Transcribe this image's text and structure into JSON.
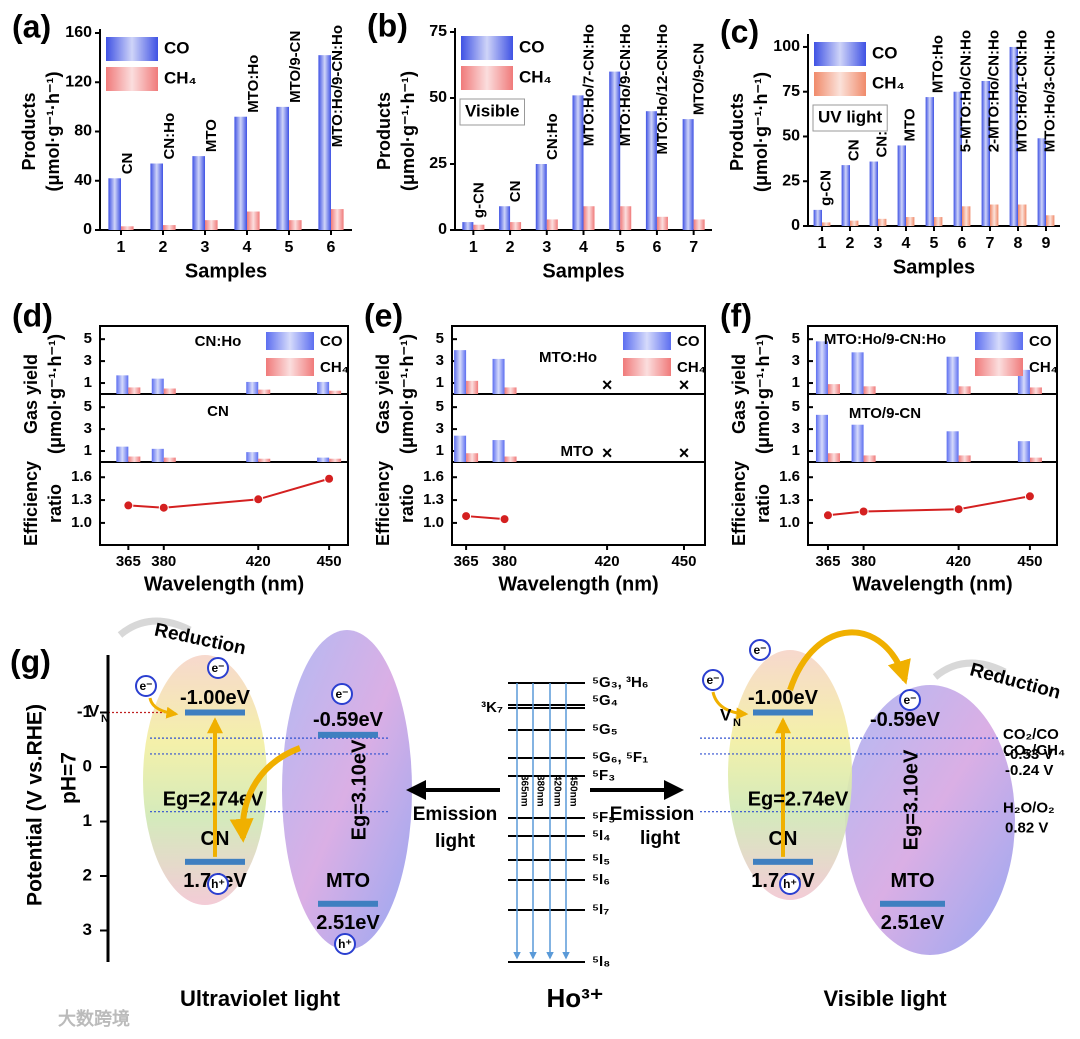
{
  "chart_data": [
    {
      "type": "bar",
      "panel": "(a)",
      "categories": [
        1,
        2,
        3,
        4,
        5,
        6
      ],
      "sample_labels": [
        "CN",
        "CN:Ho",
        "MTO",
        "MTO:Ho",
        "MTO/9-CN",
        "MTO:Ho/9-CN:Ho"
      ],
      "series": [
        {
          "name": "CO",
          "color": "#3f52e4",
          "values": [
            42,
            54,
            60,
            92,
            100,
            142
          ]
        },
        {
          "name": "CH₄",
          "color": "#f07a7a",
          "values": [
            3,
            4,
            8,
            15,
            8,
            17
          ]
        }
      ],
      "ylim": [
        0,
        160
      ],
      "yticks": [
        0,
        40,
        80,
        120,
        160
      ],
      "xlabel": "Samples",
      "ylabel": [
        "Products",
        "(μmol·g⁻¹·h⁻¹)"
      ]
    },
    {
      "type": "bar",
      "panel": "(b)",
      "categories": [
        1,
        2,
        3,
        4,
        5,
        6,
        7
      ],
      "sample_labels": [
        "g-CN",
        "CN",
        "CN:Ho",
        "MTO:Ho/7-CN:Ho",
        "MTO:Ho/9-CN:Ho",
        "MTO:Ho/12-CN:Ho",
        "MTO/9-CN"
      ],
      "series": [
        {
          "name": "CO",
          "color": "#3f52e4",
          "values": [
            3,
            9,
            25,
            51,
            60,
            45,
            42
          ]
        },
        {
          "name": "CH₄",
          "color": "#f07a7a",
          "values": [
            2,
            3,
            4,
            9,
            9,
            5,
            4
          ]
        }
      ],
      "annotation": "Visible",
      "ylim": [
        0,
        75
      ],
      "yticks": [
        0,
        25,
        50,
        75
      ],
      "xlabel": "Samples",
      "ylabel": [
        "Products",
        "(μmol·g⁻¹·h⁻¹)"
      ]
    },
    {
      "type": "bar",
      "panel": "(c)",
      "categories": [
        1,
        2,
        3,
        4,
        5,
        6,
        7,
        8,
        9
      ],
      "sample_labels": [
        "g-CN",
        "CN",
        "CN:Ho",
        "MTO",
        "MTO:Ho",
        "5-MTO:Ho/CN:Ho",
        "2-MTO:Ho/CN:Ho",
        "MTO:Ho/1-CN:Ho",
        "MTO:Ho/3-CN:Ho"
      ],
      "series": [
        {
          "name": "CO",
          "color": "#3f52e4",
          "values": [
            9,
            34,
            36,
            45,
            72,
            75,
            81,
            100,
            49
          ]
        },
        {
          "name": "CH₄",
          "color": "#f08a6a",
          "values": [
            2,
            3,
            4,
            5,
            5,
            11,
            12,
            12,
            6
          ]
        }
      ],
      "annotation": "UV light",
      "ylim": [
        0,
        105
      ],
      "yticks": [
        0,
        25,
        50,
        75,
        100
      ],
      "xlabel": "Samples",
      "ylabel": [
        "Products",
        "(μmol·g⁻¹·h⁻¹)"
      ]
    },
    {
      "type": "combo",
      "panel": "(d)",
      "x": [
        365,
        380,
        420,
        450
      ],
      "xlim": [
        353,
        458
      ],
      "xticks": [
        365,
        380,
        420,
        450
      ],
      "xlabel": "Wavelength (nm)",
      "ylabel_top": [
        "Gas yield",
        "(μmol·g⁻¹·h⁻¹)"
      ],
      "ylabel_bottom": [
        "Efficiency",
        "ratio"
      ],
      "subplots": [
        {
          "label": "CN:Ho",
          "ylim": [
            0,
            6.2
          ],
          "yticks": [
            1,
            3,
            5
          ],
          "series": [
            {
              "name": "CO",
              "color": "#5c6ef0",
              "values": [
                1.7,
                1.4,
                1.1,
                1.1
              ]
            },
            {
              "name": "CH₄",
              "color": "#f07a7a",
              "values": [
                0.6,
                0.5,
                0.4,
                0.3
              ]
            }
          ]
        },
        {
          "label": "CN",
          "ylim": [
            0,
            6.2
          ],
          "yticks": [
            1,
            3,
            5
          ],
          "series": [
            {
              "color": "#5c6ef0",
              "values": [
                1.4,
                1.2,
                0.9,
                0.4
              ]
            },
            {
              "color": "#f07a7a",
              "values": [
                0.5,
                0.4,
                0.3,
                0.3
              ]
            }
          ]
        }
      ],
      "ratio": {
        "color": "#d42020",
        "values": [
          1.23,
          1.2,
          1.31,
          1.58
        ],
        "ylim": [
          0.71,
          1.8
        ],
        "yticks": [
          {
            "value": 1,
            "label": "1.0"
          },
          1.3,
          1.6
        ]
      }
    },
    {
      "type": "combo",
      "panel": "(e)",
      "x": [
        365,
        380,
        420,
        450
      ],
      "xlim": [
        359.5,
        458.2
      ],
      "xticks": [
        365,
        380,
        420,
        450
      ],
      "xlabel": "Wavelength (nm)",
      "ylabel_top": [
        "Gas yield",
        "(μmol·g⁻¹·h⁻¹)"
      ],
      "ylabel_bottom": [
        "Efficiency",
        "ratio"
      ],
      "missing_marker": "×",
      "subplots": [
        {
          "label": "MTO:Ho",
          "ylim": [
            0,
            6.2
          ],
          "yticks": [
            1,
            3,
            5
          ],
          "series": [
            {
              "name": "CO",
              "color": "#5c6ef0",
              "values": [
                4.0,
                3.2,
                null,
                null
              ]
            },
            {
              "name": "CH₄",
              "color": "#f07a7a",
              "values": [
                1.2,
                0.6,
                null,
                null
              ]
            }
          ]
        },
        {
          "label": "MTO",
          "ylim": [
            0,
            6.2
          ],
          "yticks": [
            1,
            3,
            5
          ],
          "series": [
            {
              "color": "#5c6ef0",
              "values": [
                2.4,
                2.0,
                null,
                null
              ]
            },
            {
              "color": "#f07a7a",
              "values": [
                0.8,
                0.5,
                null,
                null
              ]
            }
          ]
        }
      ],
      "ratio": {
        "color": "#d42020",
        "values": [
          1.09,
          1.05,
          null,
          null
        ],
        "ylim": [
          0.71,
          1.8
        ],
        "yticks": [
          {
            "value": 1,
            "label": "1.0"
          },
          1.3,
          1.6
        ]
      }
    },
    {
      "type": "combo",
      "panel": "(f)",
      "x": [
        365,
        380,
        420,
        450
      ],
      "xlim": [
        356.6,
        461.4
      ],
      "xticks": [
        365,
        380,
        420,
        450
      ],
      "xlabel": "Wavelength (nm)",
      "ylabel_top": [
        "Gas yield",
        "(μmol·g⁻¹·h⁻¹)"
      ],
      "ylabel_bottom": [
        "Efficiency",
        "ratio"
      ],
      "subplots": [
        {
          "label": "MTO:Ho/9-CN:Ho",
          "ylim": [
            0,
            6.2
          ],
          "yticks": [
            1,
            3,
            5
          ],
          "series": [
            {
              "name": "CO",
              "color": "#5c6ef0",
              "values": [
                4.8,
                3.8,
                3.4,
                2.2
              ]
            },
            {
              "name": "CH₄",
              "color": "#f07a7a",
              "values": [
                0.9,
                0.7,
                0.7,
                0.6
              ]
            }
          ]
        },
        {
          "label": "MTO/9-CN",
          "ylim": [
            0,
            6.2
          ],
          "yticks": [
            1,
            3,
            5
          ],
          "series": [
            {
              "color": "#5c6ef0",
              "values": [
                4.3,
                3.4,
                2.8,
                1.9
              ]
            },
            {
              "color": "#f07a7a",
              "values": [
                0.8,
                0.6,
                0.6,
                0.4
              ]
            }
          ]
        }
      ],
      "ratio": {
        "color": "#d42020",
        "values": [
          1.1,
          1.15,
          1.18,
          1.35
        ],
        "ylim": [
          0.71,
          1.8
        ],
        "yticks": [
          {
            "value": 1,
            "label": "1.0"
          },
          1.3,
          1.6
        ]
      }
    }
  ],
  "diagram": {
    "panel": "(g)",
    "axis_label": "Potential (V vs.RHE)",
    "ph": "pH=7",
    "potential_ticks": [
      -1,
      0,
      1,
      2,
      3
    ],
    "redox": [
      {
        "couple": "CO₂/CO",
        "potential": {
          "value": -0.53,
          "label": "-0.53 V"
        }
      },
      {
        "couple": "CO₂/CH₄",
        "potential": {
          "value": -0.24,
          "label": "-0.24 V"
        }
      },
      {
        "couple": "H₂O/O₂",
        "potential": {
          "value": 0.82,
          "label": "0.82 V"
        }
      }
    ],
    "uv": {
      "title": "Ultraviolet light",
      "reduction": "Reduction",
      "vacancy": "V",
      "vacancy_sub": "N",
      "electrons": [
        "e⁻",
        "e⁻",
        "e⁻"
      ],
      "holes": [
        "h⁺",
        "h⁺"
      ],
      "emission": [
        "Emission",
        "light"
      ],
      "cn": {
        "name": "CN",
        "cb": {
          "value": -1.0,
          "label": "-1.00eV"
        },
        "vb": {
          "value": 1.74,
          "label": "1.74eV"
        },
        "gap": "Eg=2.74eV"
      },
      "mto": {
        "name": "MTO",
        "cb": {
          "value": -0.59,
          "label": "-0.59eV"
        },
        "vb": {
          "value": 2.51,
          "label": "2.51eV"
        },
        "gap": "Eg=3.10eV"
      }
    },
    "visible": {
      "title": "Visible light",
      "reduction": "Reduction",
      "vacancy": "V",
      "vacancy_sub": "N",
      "electrons": [
        "e⁻",
        "e⁻",
        "e⁻"
      ],
      "holes": [
        "h⁺"
      ],
      "emission": [
        "Emission",
        "light"
      ],
      "cn": {
        "name": "CN",
        "cb": {
          "value": -1.0,
          "label": "-1.00eV"
        },
        "vb": {
          "value": 1.74,
          "label": "1.74eV"
        },
        "gap": "Eg=2.74eV"
      },
      "mto": {
        "name": "MTO",
        "cb": {
          "value": -0.59,
          "label": "-0.59eV"
        },
        "vb": {
          "value": 2.51,
          "label": "2.51eV"
        },
        "gap": "Eg=3.10eV"
      }
    },
    "ho": {
      "ion": "Ho³⁺",
      "levels": [
        "⁵G₃, ³H₆",
        "⁵G₄",
        "³K₇",
        "⁵G₅",
        "⁵G₆, ⁵F₁",
        "⁵F₃",
        "⁵F₅",
        "⁵I₄",
        "⁵I₅",
        "⁵I₆",
        "⁵I₇",
        "⁵I₈"
      ],
      "wavelengths": [
        "365nm",
        "380nm",
        "420nm",
        "450nm"
      ]
    },
    "watermark": "大数跨境"
  }
}
